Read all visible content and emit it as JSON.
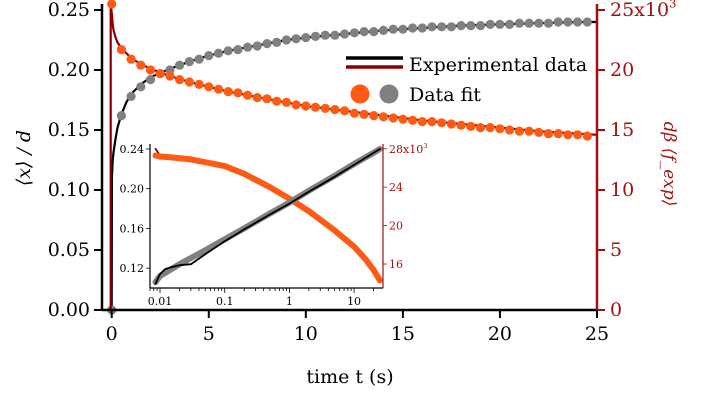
{
  "chart_data": {
    "type": "line",
    "x_axis": {
      "label": "time t (s)",
      "range": [
        -0.5,
        25
      ],
      "ticks": [
        0,
        5,
        10,
        15,
        20,
        25
      ],
      "tick_labels": [
        "0",
        "5",
        "10",
        "15",
        "20",
        "25"
      ]
    },
    "y_left_axis": {
      "label": "⟨x⟩ / d",
      "range": [
        0,
        0.25
      ],
      "ticks": [
        0,
        0.05,
        0.1,
        0.15,
        0.2,
        0.25
      ],
      "tick_labels": [
        "0.00",
        "0.05",
        "0.10",
        "0.15",
        "0.20",
        "0.25"
      ]
    },
    "y_right_axis": {
      "label": "dβ ⟨f_exp⟩",
      "color": "#a01010",
      "range": [
        0,
        25000
      ],
      "ticks": [
        0,
        5000,
        10000,
        15000,
        20000,
        25000
      ],
      "tick_labels": [
        "0",
        "5",
        "10",
        "15",
        "20",
        "25x10³"
      ]
    },
    "legend": {
      "placement": "top-right",
      "entries": [
        {
          "label": "Experimental data",
          "colors": [
            "#000000",
            "#8b0000"
          ]
        },
        {
          "label": "Data fit",
          "colors": [
            "#ff5a14",
            "#808080"
          ]
        }
      ]
    },
    "series": [
      {
        "axis": "left",
        "style": "line",
        "color": "#000000",
        "x": [
          0,
          0.01,
          0.05,
          0.1,
          0.2,
          0.3,
          0.5,
          0.75,
          1,
          1.5,
          2,
          3,
          4,
          5,
          6,
          7,
          8,
          9,
          10,
          12,
          14,
          16,
          18,
          20,
          22,
          24,
          25
        ],
        "y": [
          0,
          0.11,
          0.125,
          0.132,
          0.143,
          0.152,
          0.163,
          0.173,
          0.18,
          0.188,
          0.194,
          0.201,
          0.207,
          0.212,
          0.216,
          0.219,
          0.222,
          0.225,
          0.227,
          0.23,
          0.233,
          0.235,
          0.237,
          0.238,
          0.239,
          0.24,
          0.24
        ]
      },
      {
        "axis": "left",
        "style": "points",
        "color": "#808080",
        "x": [
          0,
          0.5,
          1,
          1.5,
          2,
          2.5,
          3,
          3.5,
          4,
          4.5,
          5,
          5.5,
          6,
          6.5,
          7,
          7.5,
          8,
          8.5,
          9,
          9.5,
          10,
          10.5,
          11,
          11.5,
          12,
          12.5,
          13,
          13.5,
          14,
          14.5,
          15,
          15.5,
          16,
          16.5,
          17,
          17.5,
          18,
          18.5,
          19,
          19.5,
          20,
          20.5,
          21,
          21.5,
          22,
          22.5,
          23,
          23.5,
          24,
          24.5
        ],
        "y": [
          0,
          0.162,
          0.178,
          0.186,
          0.192,
          0.197,
          0.2,
          0.204,
          0.207,
          0.209,
          0.212,
          0.214,
          0.216,
          0.217,
          0.219,
          0.22,
          0.222,
          0.223,
          0.225,
          0.226,
          0.227,
          0.228,
          0.229,
          0.229,
          0.23,
          0.231,
          0.232,
          0.232,
          0.233,
          0.234,
          0.234,
          0.235,
          0.235,
          0.236,
          0.236,
          0.236,
          0.237,
          0.237,
          0.237,
          0.238,
          0.238,
          0.238,
          0.239,
          0.239,
          0.239,
          0.239,
          0.24,
          0.24,
          0.24,
          0.24
        ]
      },
      {
        "axis": "right",
        "style": "line",
        "color": "#8b0000",
        "x": [
          -0.05,
          -0.05,
          0.02,
          0.05,
          0.1,
          0.2,
          0.3,
          0.5,
          0.75,
          1,
          1.5,
          2,
          3,
          4,
          5,
          6,
          7,
          8,
          9,
          10,
          12,
          14,
          16,
          18,
          20,
          22,
          24,
          25
        ],
        "y": [
          0,
          25500,
          24500,
          23800,
          23300,
          22700,
          22300,
          21800,
          21400,
          21000,
          20500,
          20100,
          19500,
          19000,
          18600,
          18200,
          17900,
          17600,
          17300,
          17000,
          16600,
          16200,
          15800,
          15500,
          15200,
          14900,
          14700,
          14600
        ]
      },
      {
        "axis": "right",
        "style": "points",
        "color": "#ff5a14",
        "x": [
          0,
          0.5,
          1,
          1.5,
          2,
          2.5,
          3,
          3.5,
          4,
          4.5,
          5,
          5.5,
          6,
          6.5,
          7,
          7.5,
          8,
          8.5,
          9,
          9.5,
          10,
          10.5,
          11,
          11.5,
          12,
          12.5,
          13,
          13.5,
          14,
          14.5,
          15,
          15.5,
          16,
          16.5,
          17,
          17.5,
          18,
          18.5,
          19,
          19.5,
          20,
          20.5,
          21,
          21.5,
          22,
          22.5,
          23,
          23.5,
          24,
          24.5
        ],
        "y": [
          25500,
          21700,
          20900,
          20400,
          20000,
          19700,
          19500,
          19200,
          19000,
          18800,
          18600,
          18400,
          18200,
          18100,
          17900,
          17700,
          17600,
          17400,
          17300,
          17100,
          17000,
          16900,
          16800,
          16700,
          16600,
          16400,
          16300,
          16200,
          16100,
          16000,
          15900,
          15800,
          15700,
          15700,
          15600,
          15500,
          15400,
          15300,
          15200,
          15200,
          15100,
          15000,
          14900,
          14900,
          14800,
          14700,
          14700,
          14600,
          14600,
          14500
        ]
      }
    ],
    "inset": {
      "type": "line",
      "x_axis": {
        "scale": "log",
        "range": [
          0.007,
          28
        ],
        "ticks": [
          0.01,
          0.1,
          1,
          10
        ],
        "tick_labels": [
          "0.01",
          "0.1",
          "1",
          "10"
        ]
      },
      "y_left_axis": {
        "range": [
          0.1,
          0.245
        ],
        "ticks": [
          0.12,
          0.16,
          0.2,
          0.24
        ],
        "tick_labels": [
          "0.12",
          "0.16",
          "0.20",
          "0.24"
        ]
      },
      "y_right_axis": {
        "color": "#a01010",
        "range": [
          13500,
          28500
        ],
        "ticks": [
          16000,
          20000,
          24000,
          28000
        ],
        "tick_labels": [
          "16",
          "20",
          "24",
          "28x10³"
        ]
      },
      "series": [
        {
          "axis": "right",
          "style": "line",
          "color": "#8b0000",
          "x": [
            0.0085,
            0.01,
            0.015,
            0.03,
            0.05,
            0.1,
            0.2,
            0.5,
            1,
            2,
            5,
            10,
            15,
            20,
            25
          ],
          "y": [
            28000,
            27300,
            27200,
            27000,
            26700,
            26300,
            25500,
            24100,
            22900,
            21600,
            19600,
            17900,
            16600,
            15500,
            14300
          ]
        },
        {
          "axis": "right",
          "style": "band",
          "color": "#ff5a14",
          "x": [
            0.0085,
            0.01,
            0.015,
            0.03,
            0.05,
            0.1,
            0.2,
            0.5,
            1,
            2,
            5,
            10,
            15,
            20,
            25
          ],
          "y": [
            27300,
            27200,
            27100,
            26900,
            26600,
            26200,
            25400,
            24000,
            22800,
            21500,
            19500,
            17800,
            16500,
            15400,
            14300
          ]
        },
        {
          "axis": "left",
          "style": "band",
          "color": "#808080",
          "x": [
            0.0085,
            0.01,
            0.02,
            0.05,
            0.1,
            0.2,
            0.5,
            1,
            2,
            5,
            10,
            20,
            25
          ],
          "y": [
            0.106,
            0.112,
            0.124,
            0.138,
            0.149,
            0.16,
            0.175,
            0.186,
            0.198,
            0.213,
            0.225,
            0.236,
            0.24
          ]
        },
        {
          "axis": "left",
          "style": "line",
          "color": "#000000",
          "x": [
            0.0085,
            0.009,
            0.01,
            0.012,
            0.015,
            0.02,
            0.03,
            0.05,
            0.1,
            0.2,
            0.5,
            1,
            2,
            5,
            10,
            20,
            25
          ],
          "y": [
            0.104,
            0.108,
            0.114,
            0.119,
            0.121,
            0.123,
            0.124,
            0.134,
            0.147,
            0.159,
            0.174,
            0.185,
            0.197,
            0.212,
            0.224,
            0.236,
            0.24
          ]
        }
      ]
    }
  }
}
